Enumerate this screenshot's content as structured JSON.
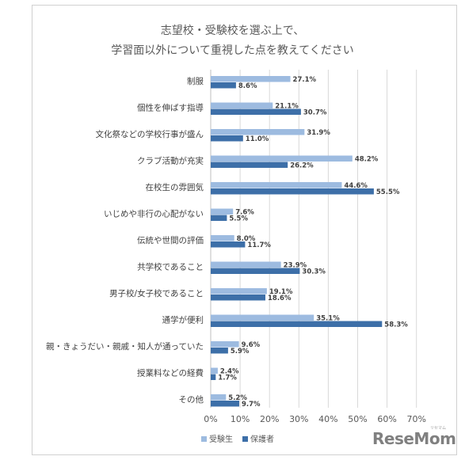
{
  "title_line1": "志望校・受験校を選ぶ上で、",
  "title_line2": "学習面以外について重視した点を教えてください",
  "watermark": "ReseMom",
  "watermark_sub": "リセマム",
  "chart_data": {
    "type": "bar",
    "orientation": "horizontal",
    "categories": [
      "制服",
      "個性を伸ばす指導",
      "文化祭などの学校行事が盛ん",
      "クラブ活動が充実",
      "在校生の雰囲気",
      "いじめや非行の心配がない",
      "伝統や世間の評価",
      "共学校であること",
      "男子校/女子校であること",
      "通学が便利",
      "親・きょうだい・親戚・知人が通っていた",
      "授業料などの経費",
      "その他"
    ],
    "series": [
      {
        "name": "受験生",
        "color": "#9dbbe0",
        "values": [
          27.1,
          21.1,
          31.9,
          48.2,
          44.6,
          7.6,
          8.0,
          23.9,
          19.1,
          35.1,
          9.6,
          2.4,
          5.2
        ]
      },
      {
        "name": "保護者",
        "color": "#3d6fa8",
        "values": [
          8.6,
          30.7,
          11.0,
          26.2,
          55.5,
          5.5,
          11.7,
          30.3,
          18.6,
          58.3,
          5.9,
          1.7,
          9.7
        ]
      }
    ],
    "xlim": [
      0,
      70
    ],
    "xticks": [
      "0%",
      "10%",
      "20%",
      "30%",
      "40%",
      "50%",
      "60%",
      "70%"
    ],
    "grid": true,
    "legend": "bottom-left"
  }
}
